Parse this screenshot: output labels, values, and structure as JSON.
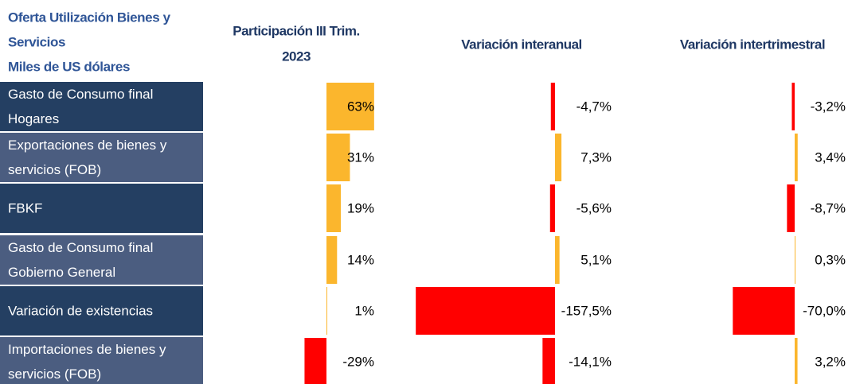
{
  "header": {
    "title_lines": [
      "Oferta Utilización Bienes y",
      "Servicios",
      "Miles de US dólares"
    ]
  },
  "rows": [
    {
      "label_lines": [
        "Gasto de Consumo final",
        "Hogares"
      ]
    },
    {
      "label_lines": [
        "Exportaciones de bienes y",
        "servicios (FOB)"
      ]
    },
    {
      "label_lines": [
        "FBKF"
      ]
    },
    {
      "label_lines": [
        "Gasto de Consumo final",
        "Gobierno General"
      ]
    },
    {
      "label_lines": [
        "Variación de existencias"
      ]
    },
    {
      "label_lines": [
        "Importaciones de bienes y",
        "servicios (FOB)"
      ]
    }
  ],
  "columns": [
    {
      "title_lines": [
        "Participación III Trim.",
        "2023"
      ],
      "values": [
        63,
        31,
        19,
        14,
        1,
        -29
      ],
      "value_labels": [
        "63%",
        "31%",
        "19%",
        "14%",
        "1%",
        "-29%"
      ]
    },
    {
      "title_lines": [
        "Variación interanual"
      ],
      "values": [
        -4.7,
        7.3,
        -5.6,
        5.1,
        -157.5,
        -14.1
      ],
      "value_labels": [
        "-4,7%",
        "7,3%",
        "-5,6%",
        "5,1%",
        "-157,5%",
        "-14,1%"
      ]
    },
    {
      "title_lines": [
        "Variación intertrimestral"
      ],
      "values": [
        -3.2,
        3.4,
        -8.7,
        0.3,
        -70.0,
        3.2
      ],
      "value_labels": [
        "-3,2%",
        "3,4%",
        "-8,7%",
        "0,3%",
        "-70,0%",
        "3,2%"
      ]
    }
  ],
  "positive_color": "#fbb62d",
  "negative_color": "#ff0000"
}
